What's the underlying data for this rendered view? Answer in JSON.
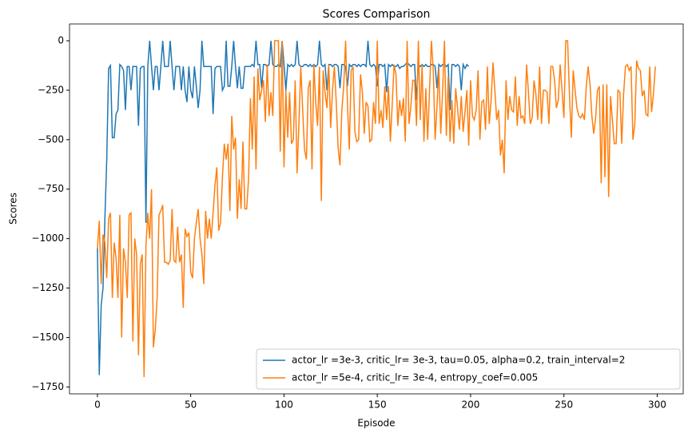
{
  "chart_data": {
    "type": "line",
    "title": "Scores Comparison",
    "x_label": "Episode",
    "y_label": "Scores",
    "xlim": [
      -14.95,
      313.95
    ],
    "ylim": [
      -1785,
      85
    ],
    "xticks": [
      0,
      50,
      100,
      150,
      200,
      250,
      300
    ],
    "yticks": [
      0,
      {
        "value": -250,
        "label": "−250"
      },
      {
        "value": -500,
        "label": "−500"
      },
      {
        "value": -750,
        "label": "−750"
      },
      {
        "value": -1000,
        "label": "−1000"
      },
      {
        "value": -1250,
        "label": "−1250"
      },
      {
        "value": -1500,
        "label": "−1500"
      },
      {
        "value": -1750,
        "label": "−1750"
      }
    ],
    "legend": "lower right",
    "series": [
      {
        "name": "actor_lr =3e-3, critic_lr= 3e-3, tau=0.05, alpha=0.2, train_interval=2",
        "color": "#1f77b4",
        "x": [
          0,
          1,
          2,
          3,
          4,
          5,
          6,
          7,
          8,
          9,
          10,
          11,
          12,
          13,
          14,
          15,
          16,
          17,
          18,
          19,
          20,
          21,
          22,
          23,
          24,
          25,
          26,
          27,
          28,
          29,
          30,
          31,
          32,
          33,
          34,
          35,
          36,
          37,
          38,
          39,
          40,
          41,
          42,
          43,
          44,
          45,
          46,
          47,
          48,
          49,
          50,
          51,
          52,
          53,
          54,
          55,
          56,
          57,
          58,
          59,
          60,
          61,
          62,
          63,
          64,
          65,
          66,
          67,
          68,
          69,
          70,
          71,
          72,
          73,
          74,
          75,
          76,
          77,
          78,
          79,
          80,
          81,
          82,
          83,
          84,
          85,
          86,
          87,
          88,
          89,
          90,
          91,
          92,
          93,
          94,
          95,
          96,
          97,
          98,
          99,
          100,
          101,
          102,
          103,
          104,
          105,
          106,
          107,
          108,
          109,
          110,
          111,
          112,
          113,
          114,
          115,
          116,
          117,
          118,
          119,
          120,
          121,
          122,
          123,
          124,
          125,
          126,
          127,
          128,
          129,
          130,
          131,
          132,
          133,
          134,
          135,
          136,
          137,
          138,
          139,
          140,
          141,
          142,
          143,
          144,
          145,
          146,
          147,
          148,
          149,
          150,
          151,
          152,
          153,
          154,
          155,
          156,
          157,
          158,
          159,
          160,
          161,
          162,
          163,
          164,
          165,
          166,
          167,
          168,
          169,
          170,
          171,
          172,
          173,
          174,
          175,
          176,
          177,
          178,
          179,
          180,
          181,
          182,
          183,
          184,
          185,
          186,
          187,
          188,
          189,
          190,
          191,
          192,
          193,
          194,
          195,
          196,
          197,
          198,
          199
        ],
        "values": [
          -1050,
          -1690,
          -1340,
          -1250,
          -900,
          -600,
          -140,
          -125,
          -490,
          -490,
          -370,
          -350,
          -120,
          -130,
          -150,
          -350,
          -130,
          -130,
          -250,
          -130,
          -130,
          -130,
          -430,
          -140,
          -130,
          -130,
          -920,
          -130,
          0,
          -130,
          -250,
          -130,
          -130,
          -250,
          -130,
          0,
          -130,
          -130,
          -130,
          0,
          -130,
          -250,
          -130,
          -130,
          -130,
          -250,
          -130,
          -250,
          -310,
          -130,
          -250,
          -290,
          -130,
          -230,
          -340,
          -250,
          0,
          -130,
          -130,
          -130,
          -130,
          -130,
          -370,
          -140,
          -130,
          -130,
          -130,
          -250,
          -230,
          0,
          -230,
          -230,
          -130,
          0,
          -130,
          -240,
          -130,
          -240,
          -240,
          -130,
          -130,
          -130,
          -130,
          -120,
          -130,
          0,
          -120,
          -120,
          -240,
          -120,
          -120,
          -130,
          -120,
          0,
          -120,
          -130,
          -130,
          -120,
          -130,
          0,
          -120,
          -250,
          -120,
          -130,
          -120,
          -130,
          -120,
          0,
          -120,
          -130,
          -130,
          -120,
          -120,
          -130,
          -120,
          -130,
          -120,
          -130,
          -120,
          0,
          -120,
          -130,
          -120,
          -250,
          -120,
          -120,
          -130,
          -120,
          -120,
          -130,
          -240,
          -120,
          -120,
          -130,
          -230,
          -120,
          -130,
          -120,
          -120,
          -130,
          -120,
          -130,
          -120,
          -120,
          -130,
          0,
          -120,
          -130,
          -120,
          -130,
          -230,
          -120,
          -120,
          -130,
          -120,
          -260,
          -120,
          -130,
          -120,
          -130,
          -130,
          -120,
          -140,
          -130,
          -130,
          -120,
          -110,
          -120,
          -130,
          -120,
          -120,
          -300,
          -120,
          -130,
          -120,
          -130,
          -120,
          -130,
          -130,
          -120,
          -120,
          -130,
          -240,
          -120,
          -130,
          -120,
          -120,
          -130,
          -120,
          -350,
          -120,
          -120,
          -130,
          -120,
          -130,
          -250,
          -120,
          -140,
          -120,
          -130
        ]
      },
      {
        "name": "actor_lr =5e-4, critic_lr= 3e-4, entropy_coef=0.005",
        "color": "#ff7f0e",
        "x": [
          0,
          1,
          2,
          3,
          4,
          5,
          6,
          7,
          8,
          9,
          10,
          11,
          12,
          13,
          14,
          15,
          16,
          17,
          18,
          19,
          20,
          21,
          22,
          23,
          24,
          25,
          26,
          27,
          28,
          29,
          30,
          31,
          32,
          33,
          34,
          35,
          36,
          37,
          38,
          39,
          40,
          41,
          42,
          43,
          44,
          45,
          46,
          47,
          48,
          49,
          50,
          51,
          52,
          53,
          54,
          55,
          56,
          57,
          58,
          59,
          60,
          61,
          62,
          63,
          64,
          65,
          66,
          67,
          68,
          69,
          70,
          71,
          72,
          73,
          74,
          75,
          76,
          77,
          78,
          79,
          80,
          81,
          82,
          83,
          84,
          85,
          86,
          87,
          88,
          89,
          90,
          91,
          92,
          93,
          94,
          95,
          96,
          97,
          98,
          99,
          100,
          101,
          102,
          103,
          104,
          105,
          106,
          107,
          108,
          109,
          110,
          111,
          112,
          113,
          114,
          115,
          116,
          117,
          118,
          119,
          120,
          121,
          122,
          123,
          124,
          125,
          126,
          127,
          128,
          129,
          130,
          131,
          132,
          133,
          134,
          135,
          136,
          137,
          138,
          139,
          140,
          141,
          142,
          143,
          144,
          145,
          146,
          147,
          148,
          149,
          150,
          151,
          152,
          153,
          154,
          155,
          156,
          157,
          158,
          159,
          160,
          161,
          162,
          163,
          164,
          165,
          166,
          167,
          168,
          169,
          170,
          171,
          172,
          173,
          174,
          175,
          176,
          177,
          178,
          179,
          180,
          181,
          182,
          183,
          184,
          185,
          186,
          187,
          188,
          189,
          190,
          191,
          192,
          193,
          194,
          195,
          196,
          197,
          198,
          199,
          200,
          201,
          202,
          203,
          204,
          205,
          206,
          207,
          208,
          209,
          210,
          211,
          212,
          213,
          214,
          215,
          216,
          217,
          218,
          219,
          220,
          221,
          222,
          223,
          224,
          225,
          226,
          227,
          228,
          229,
          230,
          231,
          232,
          233,
          234,
          235,
          236,
          237,
          238,
          239,
          240,
          241,
          242,
          243,
          244,
          245,
          246,
          247,
          248,
          249,
          250,
          251,
          252,
          253,
          254,
          255,
          256,
          257,
          258,
          259,
          260,
          261,
          262,
          263,
          264,
          265,
          266,
          267,
          268,
          269,
          270,
          271,
          272,
          273,
          274,
          275,
          276,
          277,
          278,
          279,
          280,
          281,
          282,
          283,
          284,
          285,
          286,
          287,
          288,
          289,
          290,
          291,
          292,
          293,
          294,
          295,
          296,
          297,
          298,
          299
        ],
        "values": [
          -1050,
          -910,
          -1230,
          -980,
          -1020,
          -1200,
          -900,
          -870,
          -1300,
          -1020,
          -1100,
          -1300,
          -880,
          -1500,
          -1050,
          -1120,
          -1300,
          -880,
          -870,
          -1520,
          -1000,
          -1080,
          -1590,
          -1130,
          -1080,
          -1700,
          -1040,
          -870,
          -1000,
          -750,
          -1550,
          -1460,
          -1300,
          -880,
          -860,
          -830,
          -1120,
          -1120,
          -1130,
          -1110,
          -850,
          -1110,
          -1120,
          -940,
          -1120,
          -1080,
          -1350,
          -950,
          -990,
          -970,
          -1170,
          -1200,
          -1000,
          -920,
          -850,
          -1000,
          -1080,
          -1230,
          -860,
          -1000,
          -900,
          -1000,
          -870,
          -730,
          -640,
          -960,
          -920,
          -690,
          -520,
          -600,
          -520,
          -860,
          -380,
          -550,
          -490,
          -900,
          -700,
          -850,
          -510,
          -850,
          -850,
          -700,
          -290,
          -550,
          -180,
          -650,
          -140,
          -300,
          -250,
          -200,
          -410,
          -120,
          -380,
          -260,
          -380,
          0,
          0,
          0,
          -560,
          0,
          -640,
          -250,
          -490,
          -260,
          -520,
          -500,
          -200,
          -670,
          -420,
          -130,
          -350,
          -550,
          -600,
          -240,
          -200,
          -650,
          -120,
          -310,
          -430,
          -130,
          -810,
          -150,
          -260,
          -340,
          -120,
          -440,
          -250,
          -130,
          -310,
          -540,
          -630,
          -350,
          -230,
          0,
          -320,
          -550,
          -150,
          -130,
          -460,
          -510,
          -500,
          -170,
          -260,
          -470,
          -310,
          -330,
          -510,
          -500,
          -310,
          -420,
          0,
          -420,
          -350,
          -440,
          -230,
          -400,
          -230,
          -510,
          -320,
          -120,
          -170,
          -430,
          -300,
          -380,
          -290,
          -510,
          0,
          -420,
          -330,
          -200,
          -200,
          -430,
          0,
          -400,
          -120,
          -510,
          -240,
          -500,
          -250,
          0,
          -150,
          -500,
          -330,
          -140,
          -470,
          -250,
          0,
          -480,
          -180,
          -510,
          -300,
          -520,
          -240,
          -340,
          -450,
          -280,
          -460,
          -360,
          -250,
          -530,
          -200,
          -380,
          -400,
          -350,
          -150,
          -500,
          -310,
          -300,
          -450,
          -130,
          -420,
          -300,
          -110,
          -250,
          -400,
          -350,
          -580,
          -500,
          -670,
          -200,
          -400,
          -280,
          -350,
          -360,
          -180,
          -430,
          -280,
          -390,
          -380,
          -420,
          -120,
          -260,
          -420,
          -390,
          -200,
          -270,
          -400,
          -130,
          -420,
          -250,
          -250,
          -260,
          -420,
          -130,
          -130,
          -200,
          -340,
          -300,
          -120,
          -250,
          -390,
          0,
          0,
          -280,
          -490,
          -150,
          -250,
          -340,
          -380,
          -390,
          -370,
          -400,
          -230,
          -130,
          -220,
          -380,
          -470,
          -390,
          -250,
          -230,
          -720,
          -220,
          -690,
          -220,
          -790,
          -280,
          -400,
          -520,
          -520,
          -250,
          -260,
          -520,
          -270,
          -130,
          -120,
          -150,
          -130,
          -500,
          -420,
          -100,
          -140,
          -150,
          -280,
          -250,
          -370,
          -380,
          -130,
          -360,
          -270,
          -130
        ]
      }
    ]
  }
}
